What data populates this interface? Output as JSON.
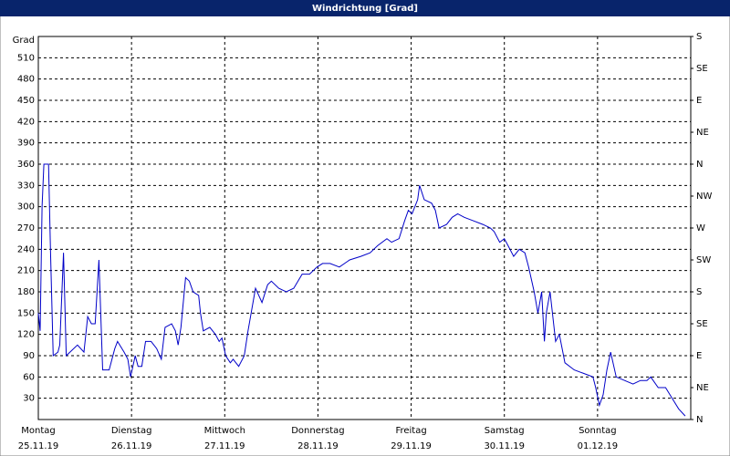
{
  "chart_data": {
    "type": "line",
    "title": "Windrichtung [Grad]",
    "y_label": "Grad",
    "x": [
      0,
      0.02,
      0.04,
      0.06,
      0.11,
      0.13,
      0.16,
      0.21,
      0.23,
      0.27,
      0.3,
      0.42,
      0.49,
      0.53,
      0.57,
      0.61,
      0.65,
      0.69,
      0.76,
      0.82,
      0.85,
      0.92,
      0.96,
      0.99,
      1.04,
      1.07,
      1.11,
      1.15,
      1.21,
      1.27,
      1.32,
      1.36,
      1.43,
      1.47,
      1.5,
      1.53,
      1.58,
      1.62,
      1.66,
      1.72,
      1.74,
      1.77,
      1.84,
      1.9,
      1.94,
      1.97,
      2.01,
      2.06,
      2.09,
      2.15,
      2.21,
      2.25,
      2.33,
      2.4,
      2.46,
      2.5,
      2.58,
      2.66,
      2.74,
      2.83,
      2.91,
      2.99,
      3.05,
      3.13,
      3.23,
      3.34,
      3.46,
      3.56,
      3.64,
      3.74,
      3.79,
      3.87,
      3.93,
      3.97,
      4.01,
      4.07,
      4.09,
      4.14,
      4.22,
      4.26,
      4.3,
      4.38,
      4.44,
      4.5,
      4.57,
      4.67,
      4.77,
      4.85,
      4.89,
      4.95,
      5.0,
      5.04,
      5.1,
      5.16,
      5.22,
      5.26,
      5.32,
      5.36,
      5.4,
      5.43,
      5.45,
      5.49,
      5.55,
      5.59,
      5.65,
      5.75,
      5.85,
      5.95,
      5.98,
      6.02,
      6.06,
      6.1,
      6.14,
      6.2,
      6.29,
      6.38,
      6.46,
      6.53,
      6.57,
      6.65,
      6.73,
      6.8,
      6.87,
      6.94
    ],
    "series": [
      {
        "color": "#0000c8",
        "values": [
          150,
          125,
          300,
          360,
          360,
          240,
          90,
          95,
          105,
          235,
          90,
          105,
          95,
          145,
          135,
          135,
          225,
          70,
          70,
          100,
          110,
          95,
          85,
          60,
          90,
          75,
          75,
          110,
          110,
          100,
          85,
          130,
          135,
          125,
          105,
          130,
          200,
          195,
          180,
          175,
          150,
          125,
          130,
          120,
          110,
          115,
          90,
          80,
          85,
          75,
          90,
          125,
          185,
          165,
          190,
          195,
          185,
          180,
          185,
          205,
          205,
          215,
          220,
          220,
          215,
          225,
          230,
          235,
          245,
          255,
          250,
          255,
          280,
          295,
          290,
          310,
          330,
          310,
          305,
          295,
          270,
          275,
          285,
          290,
          285,
          280,
          275,
          270,
          265,
          250,
          255,
          245,
          230,
          240,
          235,
          215,
          180,
          150,
          180,
          110,
          150,
          180,
          110,
          120,
          80,
          70,
          65,
          60,
          45,
          20,
          35,
          70,
          95,
          60,
          55,
          50,
          55,
          55,
          60,
          45,
          45,
          30,
          15,
          5
        ]
      }
    ],
    "xlim": [
      0,
      7
    ],
    "xticks": [
      {
        "value": 0,
        "label": [
          "Montag",
          "25.11.19"
        ]
      },
      {
        "value": 1,
        "label": [
          "Dienstag",
          "26.11.19"
        ]
      },
      {
        "value": 2,
        "label": [
          "Mittwoch",
          "27.11.19"
        ]
      },
      {
        "value": 3,
        "label": [
          "Donnerstag",
          "28.11.19"
        ]
      },
      {
        "value": 4,
        "label": [
          "Freitag",
          "29.11.19"
        ]
      },
      {
        "value": 5,
        "label": [
          "Samstag",
          "30.11.19"
        ]
      },
      {
        "value": 6,
        "label": [
          "Sonntag",
          "01.12.19"
        ]
      }
    ],
    "ylim": [
      0,
      540
    ],
    "yticks": [
      30,
      60,
      90,
      120,
      150,
      180,
      210,
      240,
      270,
      300,
      330,
      360,
      390,
      420,
      450,
      480,
      510
    ],
    "y2lim": [
      0,
      540
    ],
    "y2ticks": [
      {
        "value": 0,
        "label": "N"
      },
      {
        "value": 45,
        "label": "NE"
      },
      {
        "value": 90,
        "label": "E"
      },
      {
        "value": 135,
        "label": "SE"
      },
      {
        "value": 180,
        "label": "S"
      },
      {
        "value": 225,
        "label": "SW"
      },
      {
        "value": 270,
        "label": "W"
      },
      {
        "value": 315,
        "label": "NW"
      },
      {
        "value": 360,
        "label": "N"
      },
      {
        "value": 405,
        "label": "NE"
      },
      {
        "value": 450,
        "label": "E"
      },
      {
        "value": 495,
        "label": "SE"
      },
      {
        "value": 540,
        "label": "S"
      }
    ],
    "grid": true
  }
}
